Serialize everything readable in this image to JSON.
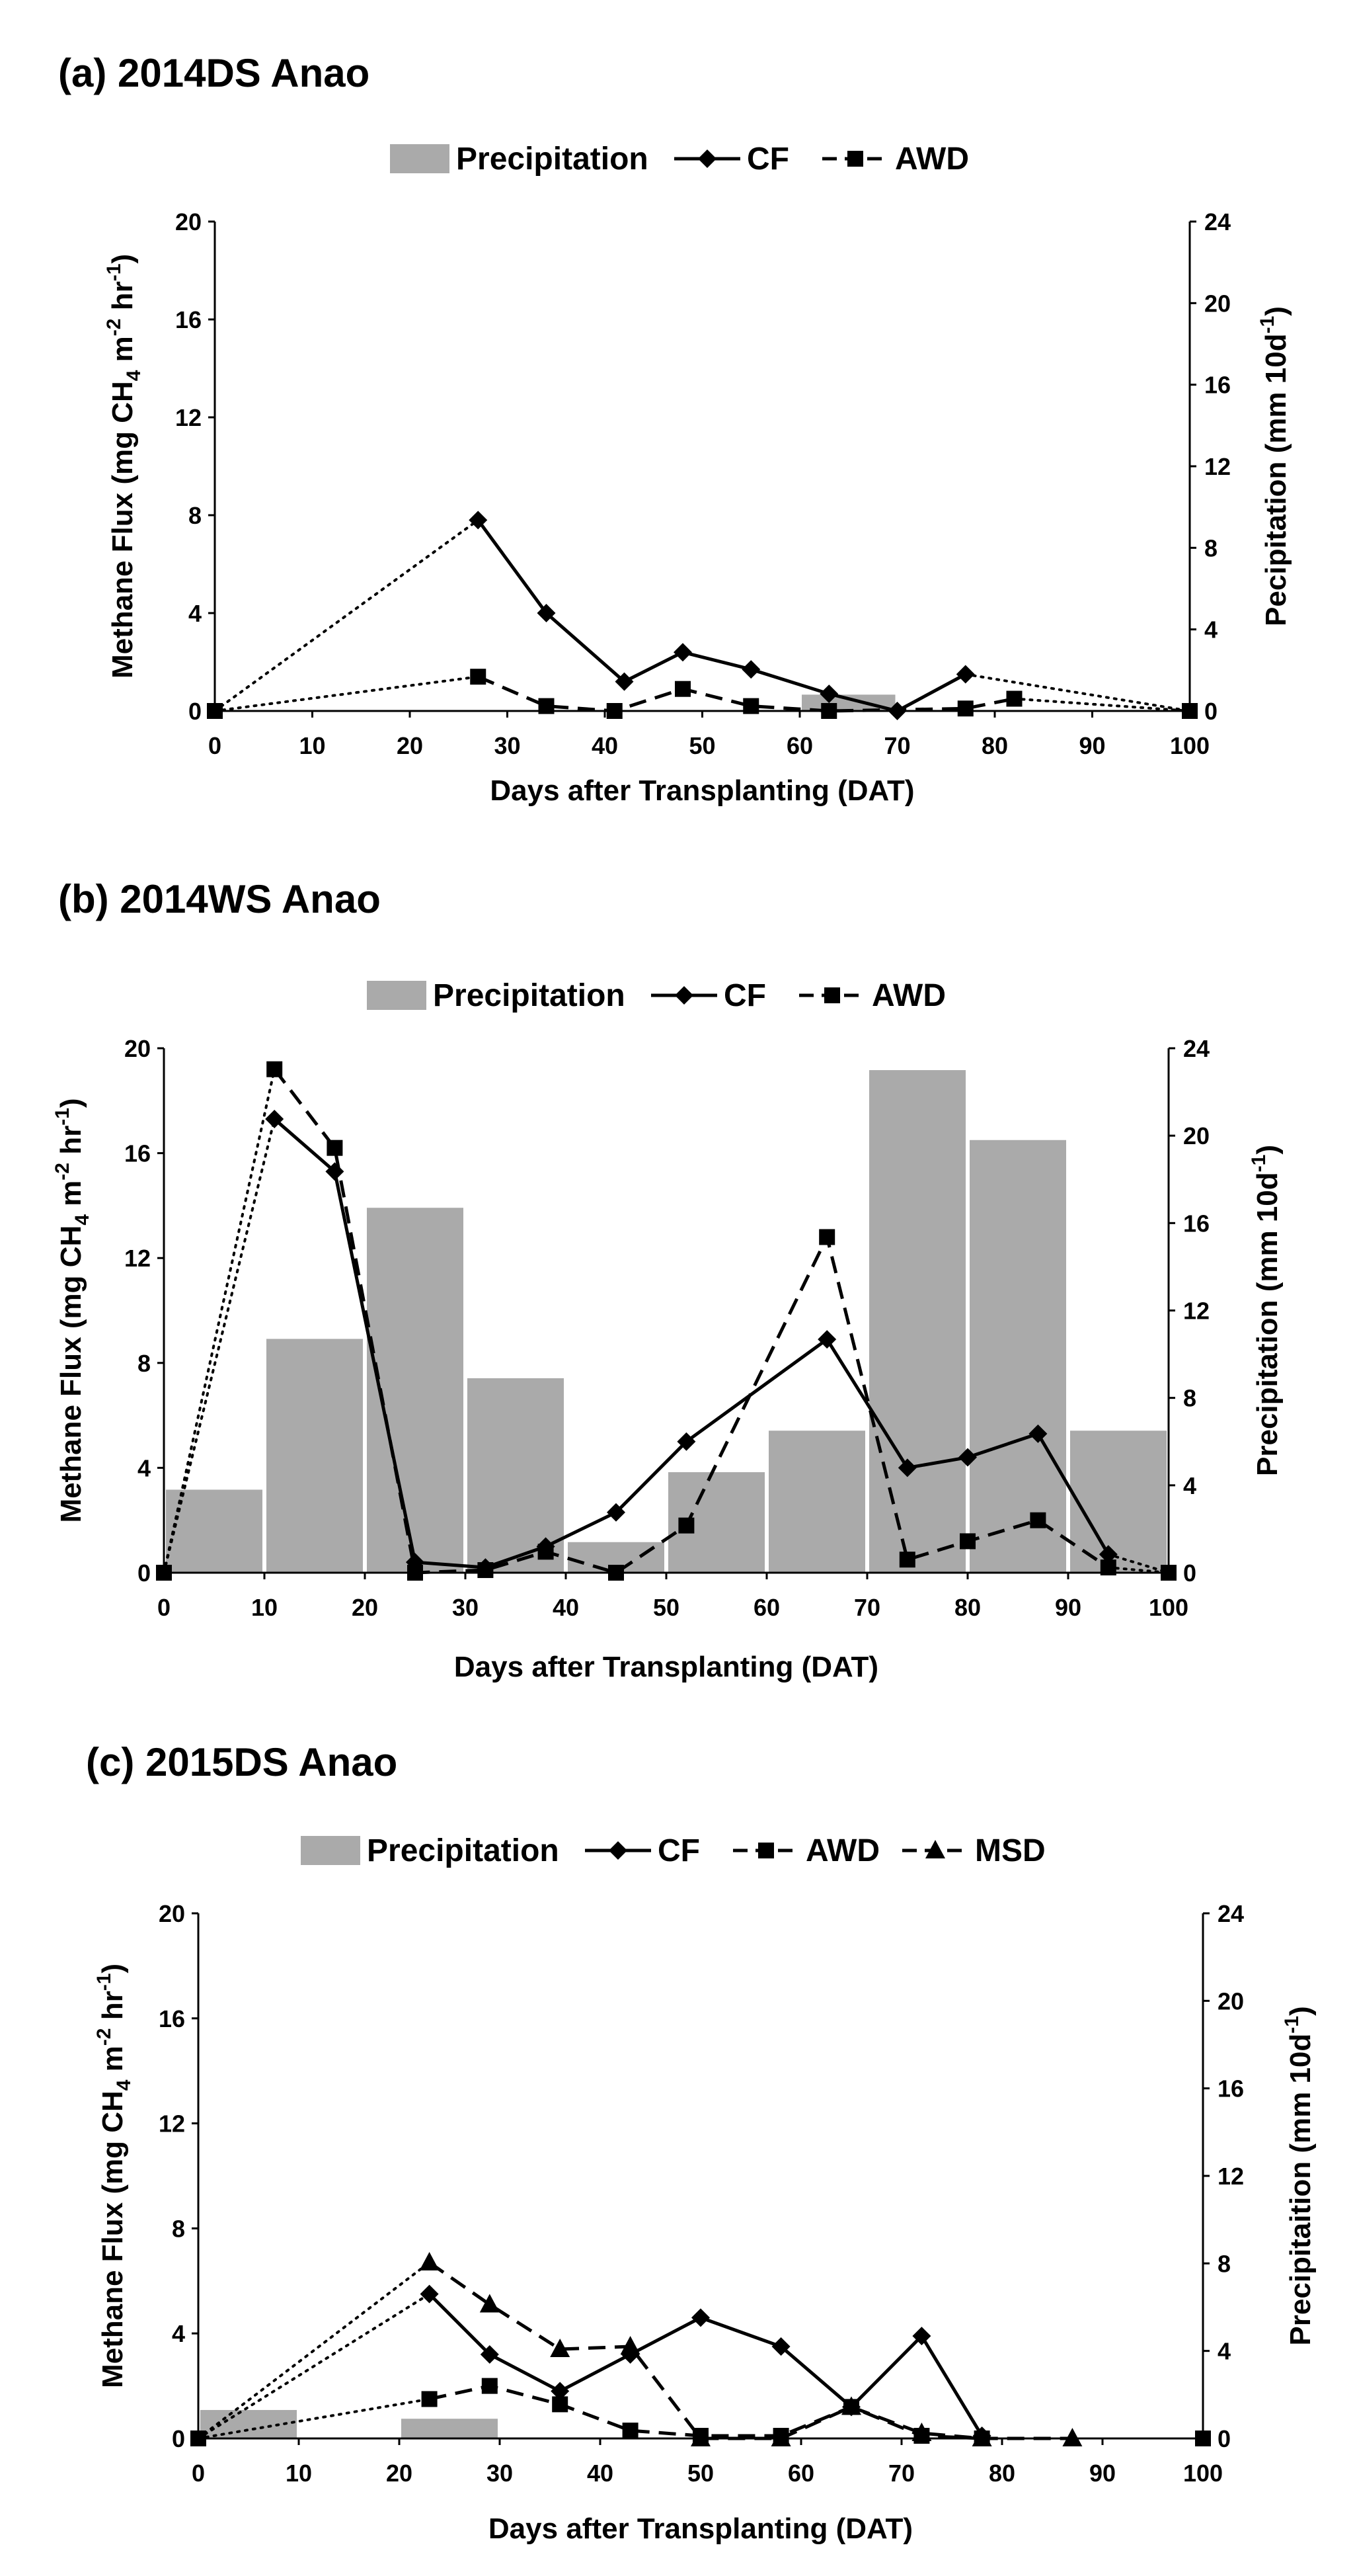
{
  "chart_data": [
    {
      "type": "bar+line",
      "panel": "a",
      "title": "(a) 2014DS Anao",
      "xlabel": "Days after Transplanting (DAT)",
      "ylabel_main": "Methane Flux (mg CH",
      "ylabel_sub": "4",
      "ylabel_tail": " m",
      "ylabel_sup1": "-2",
      "ylabel_tail2": " hr",
      "ylabel_sup2": "-1",
      "ylabel_end": ")",
      "y2label_main": "Pecipitation (mm 10d",
      "y2label_sup": "-1",
      "y2label_end": ")",
      "xlim": [
        0,
        100
      ],
      "xticks": [
        "0",
        "10",
        "20",
        "30",
        "40",
        "50",
        "60",
        "70",
        "80",
        "90",
        "100"
      ],
      "ylim": [
        0,
        20
      ],
      "yticks": [
        "0",
        "4",
        "8",
        "12",
        "16",
        "20"
      ],
      "y2lim": [
        0,
        24
      ],
      "y2ticks": [
        "0",
        "4",
        "8",
        "12",
        "16",
        "20",
        "24"
      ],
      "legend": [
        "Precipitation",
        "CF",
        "AWD"
      ],
      "bars": {
        "name": "Precipitation",
        "intervals": [
          [
            60,
            70
          ]
        ],
        "values": [
          0.8
        ]
      },
      "series": [
        {
          "name": "CF",
          "marker": "diamond",
          "style": "solid",
          "x": [
            27,
            34,
            42,
            48,
            55,
            63,
            70,
            77
          ],
          "y": [
            7.8,
            4.0,
            1.2,
            2.4,
            1.7,
            0.7,
            0.0,
            1.5
          ],
          "connector_dotted": [
            [
              0,
              0.0,
              27,
              7.8
            ],
            [
              77,
              1.5,
              100,
              0.0
            ]
          ]
        },
        {
          "name": "AWD",
          "marker": "square",
          "style": "dashed",
          "x": [
            27,
            34,
            41,
            48,
            55,
            63,
            77,
            82
          ],
          "y": [
            1.4,
            0.2,
            0.0,
            0.9,
            0.2,
            0.0,
            0.1,
            0.5
          ],
          "connector_dotted": [
            [
              0,
              0.0,
              27,
              1.4
            ],
            [
              82,
              0.5,
              100,
              0.0
            ]
          ]
        }
      ],
      "extra_points": [
        {
          "x": 0,
          "y": 0.0
        },
        {
          "x": 100,
          "y": 0.0
        }
      ]
    },
    {
      "type": "bar+line",
      "panel": "b",
      "title": "(b) 2014WS Anao",
      "xlabel": "Days after Transplanting (DAT)",
      "ylabel_main": "Methane Flux (mg CH",
      "ylabel_sub": "4",
      "ylabel_tail": " m",
      "ylabel_sup1": "-2",
      "ylabel_tail2": " hr",
      "ylabel_sup2": "-1",
      "ylabel_end": ")",
      "y2label_main": "Precipitation (mm 10d",
      "y2label_sup": "-1",
      "y2label_end": ")",
      "xlim": [
        0,
        100
      ],
      "xticks": [
        "0",
        "10",
        "20",
        "30",
        "40",
        "50",
        "60",
        "70",
        "80",
        "90",
        "100"
      ],
      "ylim": [
        0,
        20
      ],
      "yticks": [
        "0",
        "4",
        "8",
        "12",
        "16",
        "20"
      ],
      "y2lim": [
        0,
        24
      ],
      "y2ticks": [
        "0",
        "4",
        "8",
        "12",
        "16",
        "20",
        "24"
      ],
      "legend": [
        "Precipitation",
        "CF",
        "AWD"
      ],
      "bars": {
        "name": "Precipitation",
        "intervals": [
          [
            0,
            10
          ],
          [
            10,
            20
          ],
          [
            20,
            30
          ],
          [
            30,
            40
          ],
          [
            40,
            50
          ],
          [
            50,
            60
          ],
          [
            60,
            70
          ],
          [
            70,
            80
          ],
          [
            80,
            90
          ],
          [
            90,
            100
          ]
        ],
        "values": [
          3.8,
          10.7,
          16.7,
          8.9,
          1.4,
          4.6,
          6.5,
          23.0,
          19.8,
          6.5
        ]
      },
      "series": [
        {
          "name": "CF",
          "marker": "diamond",
          "style": "solid",
          "x": [
            11,
            17,
            25,
            32,
            38,
            45,
            52,
            66,
            74,
            80,
            87,
            94
          ],
          "y": [
            17.3,
            15.3,
            0.4,
            0.2,
            1.0,
            2.3,
            5.0,
            8.9,
            4.0,
            4.4,
            5.3,
            0.7
          ],
          "connector_dotted": [
            [
              0,
              0.0,
              11,
              17.3
            ],
            [
              94,
              0.7,
              100,
              0.0
            ]
          ]
        },
        {
          "name": "AWD",
          "marker": "square",
          "style": "dashed",
          "x": [
            11,
            17,
            25,
            32,
            38,
            45,
            52,
            66,
            74,
            80,
            87,
            94
          ],
          "y": [
            19.2,
            16.2,
            0.0,
            0.1,
            0.8,
            0.0,
            1.8,
            12.8,
            0.5,
            1.2,
            2.0,
            0.2
          ],
          "connector_dotted": [
            [
              0,
              0.0,
              11,
              19.2
            ],
            [
              94,
              0.2,
              100,
              0.0
            ]
          ]
        }
      ],
      "extra_points": [
        {
          "x": 0,
          "y": 0.0
        },
        {
          "x": 100,
          "y": 0.0
        }
      ]
    },
    {
      "type": "bar+line",
      "panel": "c",
      "title": "(c) 2015DS Anao",
      "xlabel": "Days after Transplanting (DAT)",
      "ylabel_main": "Methane Flux (mg CH",
      "ylabel_sub": "4",
      "ylabel_tail": " m",
      "ylabel_sup1": "-2",
      "ylabel_tail2": " hr",
      "ylabel_sup2": "-1",
      "ylabel_end": ")",
      "y2label_main": "Precipitaition (mm 10d",
      "y2label_sup": "-1",
      "y2label_end": ")",
      "xlim": [
        0,
        100
      ],
      "xticks": [
        "0",
        "10",
        "20",
        "30",
        "40",
        "50",
        "60",
        "70",
        "80",
        "90",
        "100"
      ],
      "ylim": [
        0,
        20
      ],
      "yticks": [
        "0",
        "4",
        "8",
        "12",
        "16",
        "20"
      ],
      "y2lim": [
        0,
        24
      ],
      "y2ticks": [
        "0",
        "4",
        "8",
        "12",
        "16",
        "20",
        "24"
      ],
      "legend": [
        "Precipitation",
        "CF",
        "AWD",
        "MSD"
      ],
      "bars": {
        "name": "Precipitation",
        "intervals": [
          [
            0,
            10
          ],
          [
            20,
            30
          ]
        ],
        "values": [
          1.3,
          0.9
        ]
      },
      "series": [
        {
          "name": "CF",
          "marker": "diamond",
          "style": "solid",
          "x": [
            23,
            29,
            36,
            43,
            50,
            58,
            65,
            72,
            78
          ],
          "y": [
            5.5,
            3.2,
            1.8,
            3.2,
            4.6,
            3.5,
            1.2,
            3.9,
            0.1
          ],
          "connector_dotted": [
            [
              0,
              0.0,
              23,
              5.5
            ]
          ]
        },
        {
          "name": "AWD",
          "marker": "square",
          "style": "dashed",
          "x": [
            23,
            29,
            36,
            43,
            50,
            58,
            65,
            72,
            78
          ],
          "y": [
            1.5,
            2.0,
            1.3,
            0.3,
            0.1,
            0.1,
            1.2,
            0.1,
            0.0
          ],
          "connector_dotted": [
            [
              0,
              0.0,
              23,
              1.5
            ]
          ]
        },
        {
          "name": "MSD",
          "marker": "triangle",
          "style": "dashed",
          "x": [
            23,
            29,
            36,
            43,
            50,
            58,
            65,
            72,
            78,
            87
          ],
          "y": [
            6.7,
            5.1,
            3.4,
            3.5,
            0.0,
            0.0,
            1.2,
            0.2,
            0.0,
            0.0
          ],
          "connector_dotted": [
            [
              0,
              0.0,
              23,
              6.7
            ]
          ]
        }
      ],
      "extra_points": [
        {
          "x": 0,
          "y": 0.0
        },
        {
          "x": 100,
          "y": 0.0
        }
      ]
    }
  ]
}
